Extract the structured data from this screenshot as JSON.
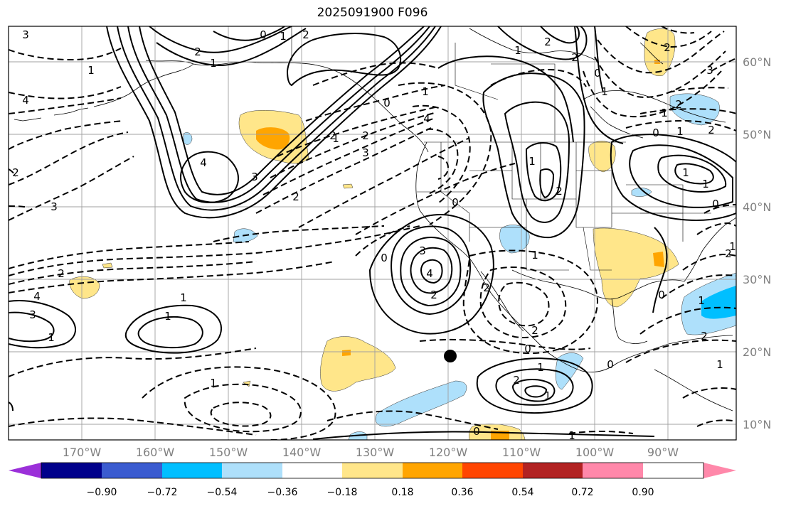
{
  "title": "2025091900 F096",
  "map": {
    "longitude_labels": [
      "170°W",
      "160°W",
      "150°W",
      "140°W",
      "130°W",
      "120°W",
      "110°W",
      "100°W",
      "90°W"
    ],
    "latitude_labels": [
      "60°N",
      "50°N",
      "40°N",
      "30°N",
      "20°N",
      "10°N"
    ],
    "contour_labels": [
      "0",
      "1",
      "2",
      "2",
      "4",
      "3",
      "1",
      "3",
      "4",
      "2",
      "2",
      "3",
      "2",
      "4",
      "1",
      "2",
      "0",
      "3",
      "1",
      "1",
      "2",
      "4",
      "3",
      "0",
      "1",
      "2",
      "1",
      "1",
      "4",
      "3",
      "2",
      "1",
      "1",
      "2",
      "0",
      "1",
      "2",
      "1",
      "0",
      "2",
      "0",
      "1",
      "2",
      "1",
      "2",
      "1",
      "2",
      "2",
      "1",
      "0",
      "1",
      "1",
      "0",
      "1",
      "3",
      "2",
      "1",
      "2",
      "0",
      "1",
      "2",
      "1",
      "0",
      "0",
      "1"
    ],
    "marker": "filled-circle"
  },
  "colorbar": {
    "ticks": [
      "−0.90",
      "−0.72",
      "−0.54",
      "−0.36",
      "−0.18",
      "0.18",
      "0.36",
      "0.54",
      "0.72",
      "0.90"
    ],
    "colors": [
      "#9b30d9",
      "#00008b",
      "#3a5bd0",
      "#00bfff",
      "#aee0fb",
      "#ffffff",
      "#ffe68a",
      "#ffa500",
      "#ff4500",
      "#b22222",
      "#ff88aa"
    ]
  }
}
